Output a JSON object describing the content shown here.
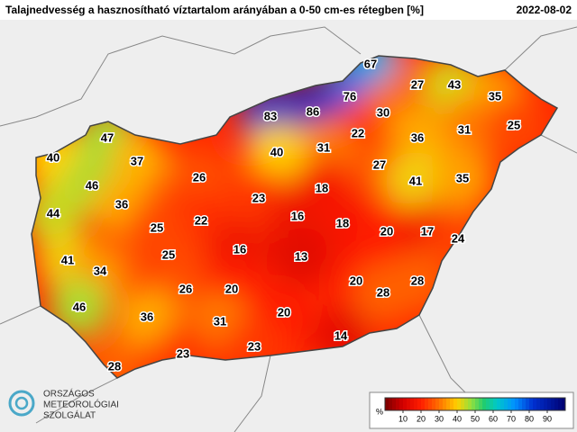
{
  "header": {
    "title": "Talajnedvesség a hasznosítható víztartalom arányában a 0-50 cm-es rétegben [%]",
    "date": "2022-08-02"
  },
  "stations": [
    67,
    27,
    43,
    35,
    76,
    83,
    86,
    30,
    31,
    25,
    22,
    36,
    47,
    31,
    40,
    40,
    37,
    27,
    26,
    41,
    35,
    46,
    18,
    23,
    36,
    44,
    16,
    22,
    18,
    25,
    20,
    17,
    24,
    16,
    13,
    25,
    41,
    34,
    20,
    28,
    26,
    20,
    28,
    46,
    36,
    20,
    31,
    14,
    23,
    23,
    28
  ],
  "colorbar": {
    "unit": "%",
    "range": [
      0,
      100
    ],
    "ticks": [
      10,
      20,
      30,
      40,
      50,
      60,
      70,
      80,
      90
    ],
    "color_stops": [
      {
        "value": 0,
        "color": "#7a0000"
      },
      {
        "value": 10,
        "color": "#d40000"
      },
      {
        "value": 20,
        "color": "#ff1e00"
      },
      {
        "value": 30,
        "color": "#ff7000"
      },
      {
        "value": 40,
        "color": "#ffd000"
      },
      {
        "value": 48,
        "color": "#8fe040"
      },
      {
        "value": 55,
        "color": "#20cc70"
      },
      {
        "value": 62,
        "color": "#00c8c8"
      },
      {
        "value": 72,
        "color": "#0090ff"
      },
      {
        "value": 82,
        "color": "#0030d0"
      },
      {
        "value": 100,
        "color": "#000070"
      }
    ]
  },
  "logo": {
    "line1": "ORSZÁGOS",
    "line2": "METEOROLÓGIAI",
    "line3": "SZOLGÁLAT"
  }
}
